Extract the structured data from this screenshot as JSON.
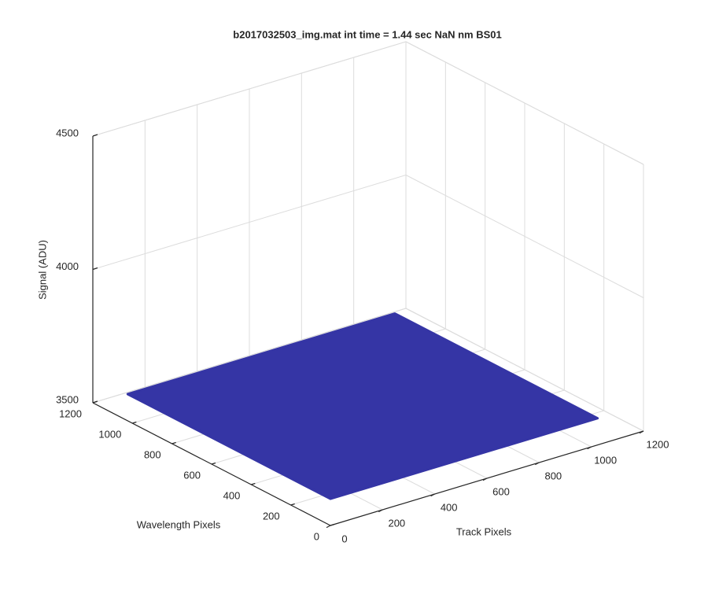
{
  "chart_data": {
    "type": "surface3d",
    "title": "b2017032503_img.mat int time = 1.44 sec  NaN nm BS01",
    "x_label": "Track Pixels",
    "y_label": "Wavelength Pixels",
    "z_label": "Signal (ADU)",
    "xlim": [
      0,
      1200
    ],
    "xticks": [
      0,
      200,
      400,
      600,
      800,
      1000,
      1200
    ],
    "ylim": [
      0,
      1200
    ],
    "yticks": [
      0,
      200,
      400,
      600,
      800,
      1000,
      1200
    ],
    "zlim": [
      3500,
      4500
    ],
    "zticks": [
      3500,
      4000,
      4500
    ],
    "grid": true,
    "color": "#3535a5",
    "x": [
      0,
      1024
    ],
    "y": [
      0,
      1024
    ],
    "values": [
      [
        3600,
        3600
      ],
      [
        3600,
        3600
      ]
    ]
  }
}
